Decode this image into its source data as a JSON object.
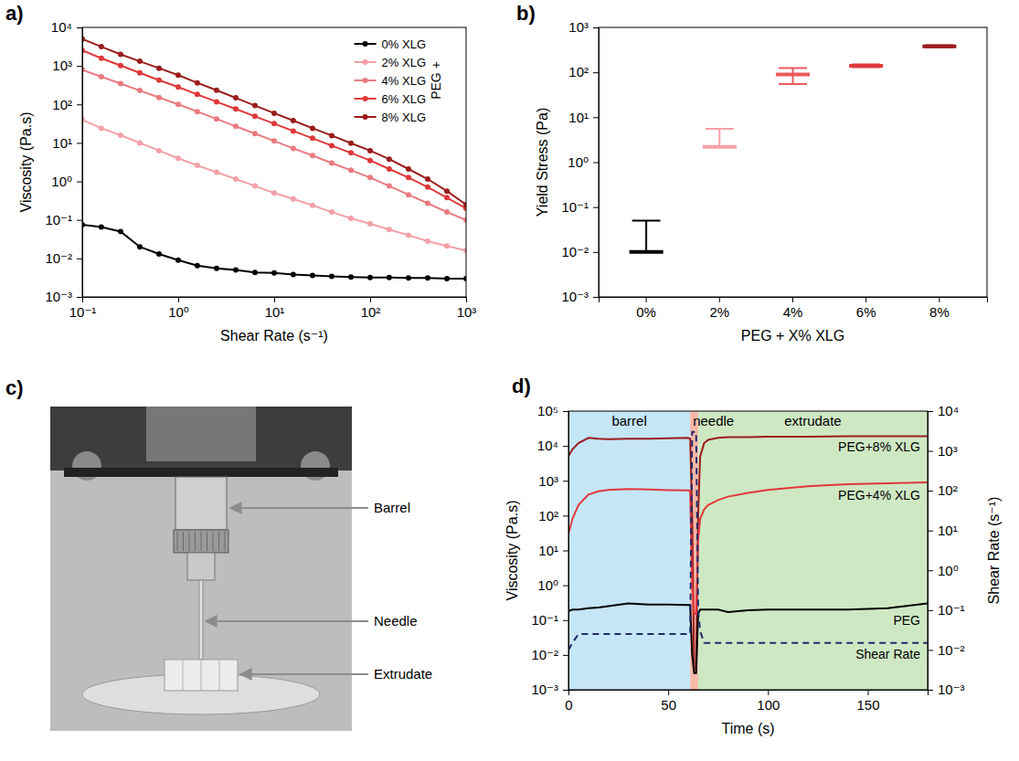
{
  "chart_data": [
    {
      "type": "line",
      "title": "a)",
      "xlabel": "Shear Rate (s⁻¹)",
      "ylabel": "Viscosity (Pa.s)",
      "log": true,
      "marker": "circle",
      "legend": "upper right",
      "annotations": [
        "PEG +"
      ],
      "xlim": [
        0.1,
        1000
      ],
      "xticks": [
        {
          "value": 0.1,
          "label": "10⁻¹"
        },
        {
          "value": 1,
          "label": "10⁰"
        },
        {
          "value": 10,
          "label": "10¹"
        },
        {
          "value": 100,
          "label": "10²"
        },
        {
          "value": 1000,
          "label": "10³"
        }
      ],
      "ylim": [
        0.001,
        10000
      ],
      "yticks": [
        {
          "value": 0.001,
          "label": "10⁻³"
        },
        {
          "value": 0.01,
          "label": "10⁻²"
        },
        {
          "value": 0.1,
          "label": "10⁻¹"
        },
        {
          "value": 1,
          "label": "10⁰"
        },
        {
          "value": 10,
          "label": "10¹"
        },
        {
          "value": 100,
          "label": "10²"
        },
        {
          "value": 1000,
          "label": "10³"
        },
        {
          "value": 10000,
          "label": "10⁴"
        }
      ],
      "x": [
        0.1,
        0.158,
        0.251,
        0.398,
        0.631,
        1,
        1.58,
        2.51,
        3.98,
        6.31,
        10,
        15.8,
        25.1,
        39.8,
        63.1,
        100,
        158,
        251,
        398,
        631,
        1000
      ],
      "series": [
        {
          "name": "0% XLG",
          "color": "#000000",
          "values": [
            0.075,
            0.065,
            0.05,
            0.02,
            0.013,
            0.009,
            0.0065,
            0.0055,
            0.005,
            0.0043,
            0.0042,
            0.0038,
            0.0036,
            0.0034,
            0.0033,
            0.0032,
            0.0032,
            0.0031,
            0.0031,
            0.003,
            0.003
          ]
        },
        {
          "name": "2% XLG",
          "color": "#f4a0a8",
          "values": [
            40,
            24,
            15.8,
            10,
            6.3,
            4.0,
            2.6,
            1.74,
            1.15,
            0.76,
            0.5,
            0.35,
            0.24,
            0.16,
            0.11,
            0.079,
            0.056,
            0.04,
            0.028,
            0.021,
            0.016
          ]
        },
        {
          "name": "4% XLG",
          "color": "#ea7a80",
          "values": [
            794,
            525,
            347,
            229,
            151,
            100,
            65,
            42,
            27,
            17.4,
            11.2,
            7.2,
            4.7,
            3,
            1.95,
            1.26,
            0.76,
            0.45,
            0.27,
            0.16,
            0.1
          ]
        },
        {
          "name": "6% XLG",
          "color": "#e0383a",
          "values": [
            2512,
            1585,
            1023,
            661,
            427,
            282,
            182,
            117,
            76,
            49,
            31.6,
            20.4,
            13.2,
            8.5,
            5.5,
            3.5,
            2.1,
            1.26,
            0.71,
            0.38,
            0.2
          ]
        },
        {
          "name": "8% XLG",
          "color": "#9b1c1c",
          "values": [
            5012,
            3162,
            1995,
            1318,
            871,
            575,
            363,
            234,
            148,
            93,
            59,
            38,
            24,
            15.5,
            9.8,
            6.3,
            3.8,
            2.1,
            1.15,
            0.56,
            0.25
          ]
        }
      ]
    },
    {
      "type": "errorbar",
      "title": "b)",
      "xlabel": "PEG + X% XLG",
      "ylabel": "Yield Stress (Pa)",
      "log": "y",
      "categories": [
        "0%",
        "2%",
        "4%",
        "6%",
        "8%"
      ],
      "values": [
        0.01,
        2.2,
        90,
        140,
        380
      ],
      "lower": [
        0.01,
        2.2,
        55,
        130,
        360
      ],
      "upper": [
        0.05,
        5.5,
        125,
        150,
        400
      ],
      "colors": [
        "#000000",
        "#f4a0a8",
        "#ea5a60",
        "#e0383a",
        "#9b1c1c"
      ],
      "ylim": [
        0.001,
        1000
      ],
      "yticks": [
        {
          "value": 0.001,
          "label": "10⁻³"
        },
        {
          "value": 0.01,
          "label": "10⁻²"
        },
        {
          "value": 0.1,
          "label": "10⁻¹"
        },
        {
          "value": 1,
          "label": "10⁰"
        },
        {
          "value": 10,
          "label": "10¹"
        },
        {
          "value": 100,
          "label": "10²"
        },
        {
          "value": 1000,
          "label": "10³"
        }
      ]
    },
    {
      "type": "image",
      "title": "c)",
      "annotations": [
        "Barrel",
        "Needle",
        "Extrudate"
      ]
    },
    {
      "type": "line",
      "title": "d)",
      "xlabel": "Time (s)",
      "ylabel": "Viscosity (Pa.s)",
      "y2label": "Shear Rate (s⁻¹)",
      "log": "y",
      "xlim": [
        0,
        180
      ],
      "xticks": [
        0,
        50,
        100,
        150
      ],
      "ylim": [
        0.001,
        100000
      ],
      "yticks": [
        {
          "value": 0.001,
          "label": "10⁻³"
        },
        {
          "value": 0.01,
          "label": "10⁻²"
        },
        {
          "value": 0.1,
          "label": "10⁻¹"
        },
        {
          "value": 1,
          "label": "10⁰"
        },
        {
          "value": 10,
          "label": "10¹"
        },
        {
          "value": 100,
          "label": "10²"
        },
        {
          "value": 1000,
          "label": "10³"
        },
        {
          "value": 10000,
          "label": "10⁴"
        },
        {
          "value": 100000,
          "label": "10⁵"
        }
      ],
      "y2lim": [
        0.001,
        10000
      ],
      "y2ticks": [
        {
          "value": 0.001,
          "label": "10⁻³"
        },
        {
          "value": 0.01,
          "label": "10⁻²"
        },
        {
          "value": 0.1,
          "label": "10⁻¹"
        },
        {
          "value": 1,
          "label": "10⁰"
        },
        {
          "value": 10,
          "label": "10¹"
        },
        {
          "value": 100,
          "label": "10²"
        },
        {
          "value": 1000,
          "label": "10³"
        },
        {
          "value": 10000,
          "label": "10⁴"
        }
      ],
      "regions": [
        {
          "name": "barrel",
          "start": 0,
          "end": 61,
          "color": "#c5e6f7"
        },
        {
          "name": "needle",
          "start": 61,
          "end": 65,
          "color": "#f7b9a8"
        },
        {
          "name": "extrudate",
          "start": 65,
          "end": 180,
          "color": "#cfe8c4"
        }
      ],
      "x": [
        0,
        2,
        5,
        10,
        15,
        20,
        30,
        40,
        50,
        60,
        61,
        62,
        63,
        64,
        65,
        66,
        68,
        70,
        75,
        80,
        90,
        100,
        120,
        140,
        160,
        180
      ],
      "series": [
        {
          "name": "PEG+8% XLG",
          "color": "#9b1c1c",
          "values": [
            5000,
            8000,
            12000,
            17000,
            16000,
            15500,
            16000,
            16000,
            16500,
            17000,
            16000,
            100,
            0.004,
            0.004,
            100,
            5000,
            12000,
            15000,
            17000,
            18000,
            18000,
            18500,
            18500,
            19000,
            19000,
            19000
          ]
        },
        {
          "name": "PEG+4% XLG",
          "color": "#e0383a",
          "values": [
            30,
            80,
            200,
            400,
            500,
            550,
            580,
            560,
            540,
            530,
            500,
            1,
            0.15,
            0.15,
            20,
            80,
            150,
            200,
            280,
            350,
            450,
            550,
            700,
            800,
            850,
            900
          ]
        },
        {
          "name": "PEG",
          "color": "#000000",
          "values": [
            0.18,
            0.2,
            0.2,
            0.22,
            0.23,
            0.25,
            0.3,
            0.28,
            0.28,
            0.27,
            0.27,
            0.01,
            0.003,
            0.003,
            0.15,
            0.2,
            0.2,
            0.2,
            0.2,
            0.17,
            0.19,
            0.2,
            0.2,
            0.2,
            0.22,
            0.3
          ]
        },
        {
          "name": "Shear Rate",
          "color": "#1f2a6b",
          "axis": "y2",
          "line_style": "dashed",
          "values": [
            0.01,
            0.015,
            0.025,
            0.025,
            0.025,
            0.025,
            0.025,
            0.025,
            0.025,
            0.025,
            0.025,
            3000,
            3000,
            3000,
            0.1,
            0.03,
            0.015,
            0.015,
            0.015,
            0.015,
            0.015,
            0.015,
            0.015,
            0.015,
            0.015,
            0.015
          ]
        }
      ]
    }
  ]
}
